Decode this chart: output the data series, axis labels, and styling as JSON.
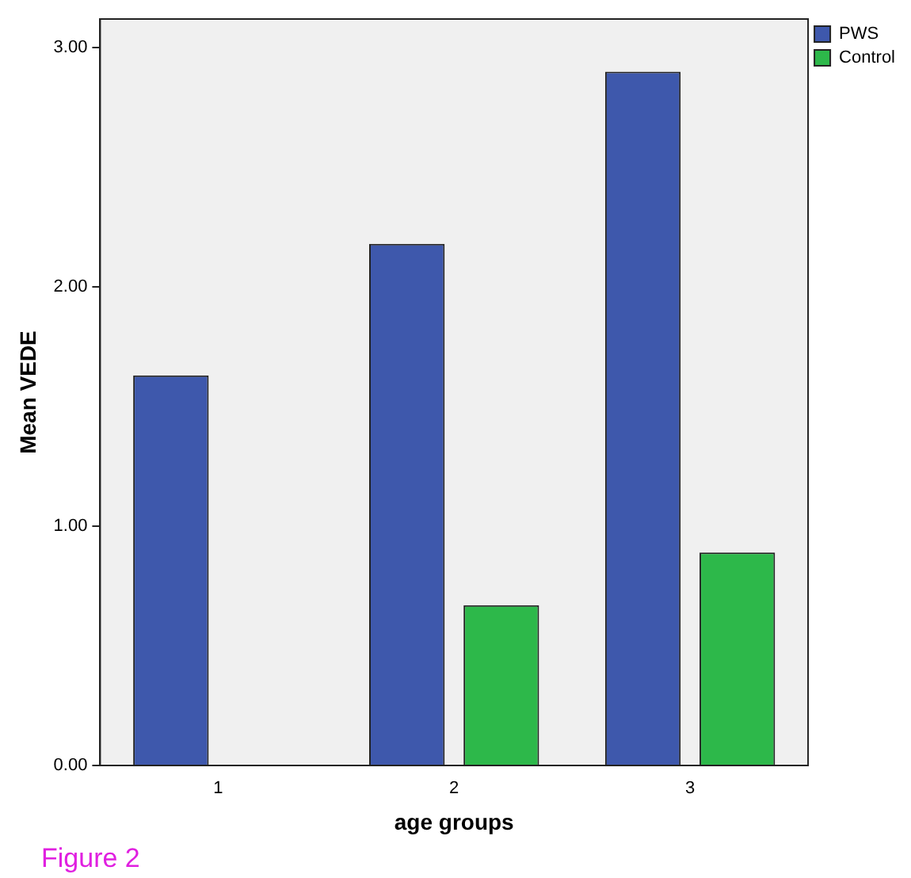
{
  "chart_data": {
    "type": "bar",
    "xlabel": "age groups",
    "ylabel": "Mean VEDE",
    "categories": [
      "1",
      "2",
      "3"
    ],
    "series": [
      {
        "name": "PWS",
        "color": "#3e58ac",
        "values": [
          1.63,
          2.18,
          2.9
        ]
      },
      {
        "name": "Control",
        "color": "#2db84a",
        "values": [
          null,
          0.67,
          0.89
        ]
      }
    ],
    "ylim": [
      0,
      3.12
    ],
    "yticks": [
      {
        "value": 0,
        "label": "0.00"
      },
      {
        "value": 1,
        "label": "1.00"
      },
      {
        "value": 2,
        "label": "2.00"
      },
      {
        "value": 3,
        "label": "3.00"
      }
    ],
    "grid": false,
    "legend": "top right",
    "annotations": [
      "Figure 2"
    ]
  }
}
